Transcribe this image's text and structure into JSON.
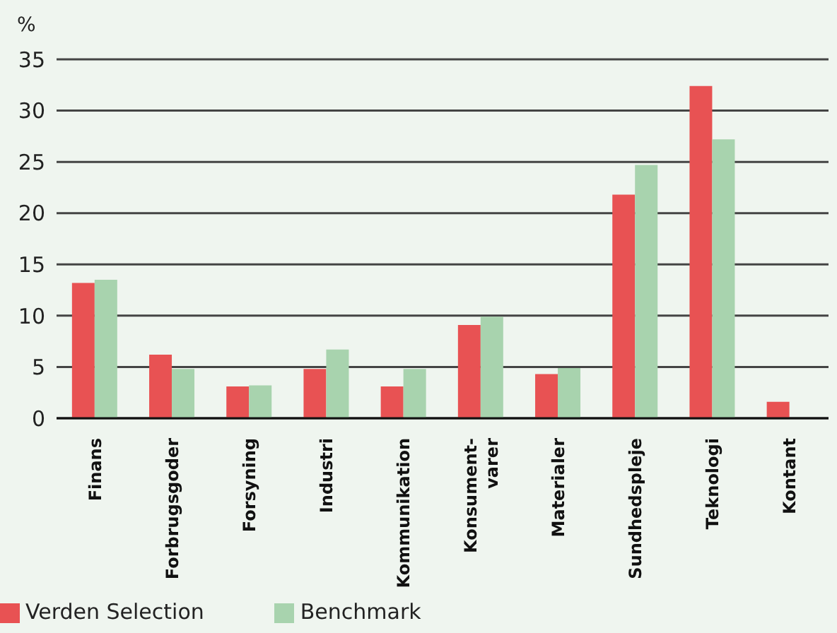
{
  "chart_data": {
    "type": "bar",
    "ylabel": "%",
    "categories": [
      "Finans",
      "Forbrugsgoder",
      "Forsyning",
      "Industri",
      "Kommunikation",
      "Konsument-\nvarer",
      "Materialer",
      "Sundhedspleje",
      "Teknologi",
      "Kontant"
    ],
    "series": [
      {
        "name": "Verden Selection",
        "color": "#e85253",
        "values": [
          13.2,
          6.2,
          3.1,
          4.8,
          3.1,
          9.1,
          4.3,
          21.8,
          32.4,
          1.6
        ]
      },
      {
        "name": "Benchmark",
        "color": "#a8d3ae",
        "values": [
          13.5,
          4.8,
          3.2,
          6.7,
          4.8,
          9.9,
          4.9,
          24.7,
          27.2,
          null
        ]
      }
    ],
    "ylim": [
      0,
      35
    ],
    "yticks": [
      0,
      5,
      10,
      15,
      20,
      25,
      30,
      35
    ],
    "grid": "y",
    "legend": "bottom left"
  }
}
